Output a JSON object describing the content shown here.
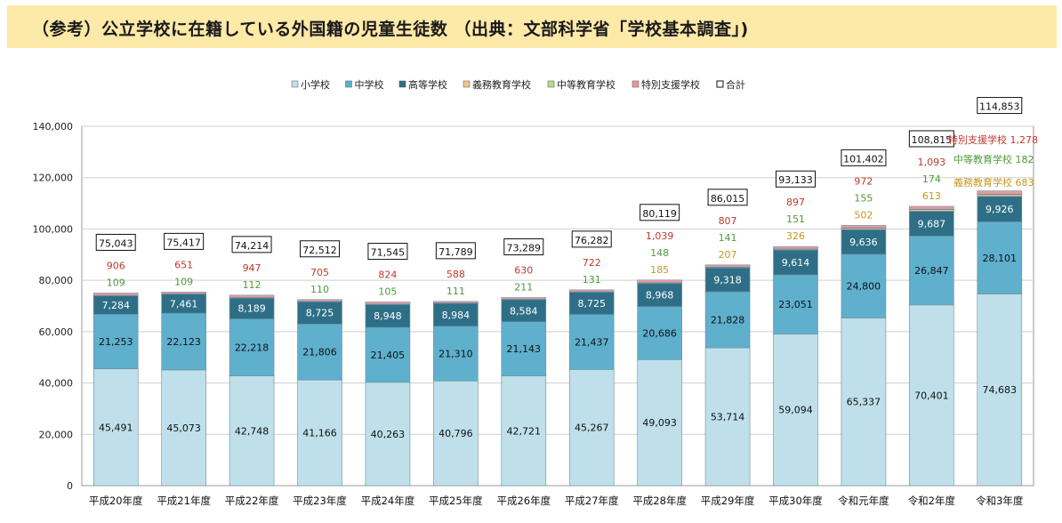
{
  "page_title": "（参考）公立学校に在籍している外国籍の児童生徒数 （出典：文部科学省「学校基本調査」)",
  "colors": {
    "elementary": "#bfe0ea",
    "junior_high": "#5eb0cd",
    "high_school": "#2e6f87",
    "compulsory": "#f2c48c",
    "secondary": "#b9d98c",
    "special_support": "#e79aa4",
    "label_special": "#c0392b",
    "label_secondary": "#4e9a3a",
    "label_compulsory": "#c8961e"
  },
  "chart_data": {
    "type": "bar",
    "stacked": true,
    "title": "",
    "xlabel": "",
    "ylabel": "",
    "ylim": [
      0,
      140000
    ],
    "yticks": [
      0,
      20000,
      40000,
      60000,
      80000,
      100000,
      120000,
      140000
    ],
    "ytick_labels": [
      "0",
      "20,000",
      "40,000",
      "60,000",
      "80,000",
      "100,000",
      "120,000",
      "140,000"
    ],
    "legend_position": "top-center",
    "categories": [
      "平成20年度",
      "平成21年度",
      "平成22年度",
      "平成23年度",
      "平成24年度",
      "平成25年度",
      "平成26年度",
      "平成27年度",
      "平成28年度",
      "平成29年度",
      "平成30年度",
      "令和元年度",
      "令和2年度",
      "令和3年度"
    ],
    "series": [
      {
        "name": "小学校",
        "key": "elementary",
        "values": [
          45491,
          45073,
          42748,
          41166,
          40263,
          40796,
          42721,
          45267,
          49093,
          53714,
          59094,
          65337,
          70401,
          74683
        ]
      },
      {
        "name": "中学校",
        "key": "junior_high",
        "values": [
          21253,
          22123,
          22218,
          21806,
          21405,
          21310,
          21143,
          21437,
          20686,
          21828,
          23051,
          24800,
          26847,
          28101
        ]
      },
      {
        "name": "高等学校",
        "key": "high_school",
        "values": [
          7284,
          7461,
          8189,
          8725,
          8948,
          8984,
          8584,
          8725,
          8968,
          9318,
          9614,
          9636,
          9687,
          9926
        ]
      },
      {
        "name": "義務教育学校",
        "key": "compulsory",
        "values": [
          0,
          0,
          0,
          0,
          0,
          0,
          0,
          0,
          185,
          207,
          326,
          502,
          613,
          683
        ]
      },
      {
        "name": "中等教育学校",
        "key": "secondary",
        "values": [
          109,
          109,
          112,
          110,
          105,
          111,
          211,
          131,
          148,
          141,
          151,
          155,
          174,
          182
        ]
      },
      {
        "name": "特別支援学校",
        "key": "special_support",
        "values": [
          906,
          651,
          947,
          705,
          824,
          588,
          630,
          722,
          1039,
          807,
          897,
          972,
          1093,
          1278
        ]
      }
    ],
    "total_legend": "合計",
    "totals": [
      75043,
      75417,
      74214,
      72512,
      71545,
      71789,
      73289,
      76282,
      80119,
      86015,
      93133,
      101402,
      108815,
      114853
    ],
    "annotations": [
      "特別支援学校",
      "中等教育学校",
      "義務教育学校"
    ]
  }
}
